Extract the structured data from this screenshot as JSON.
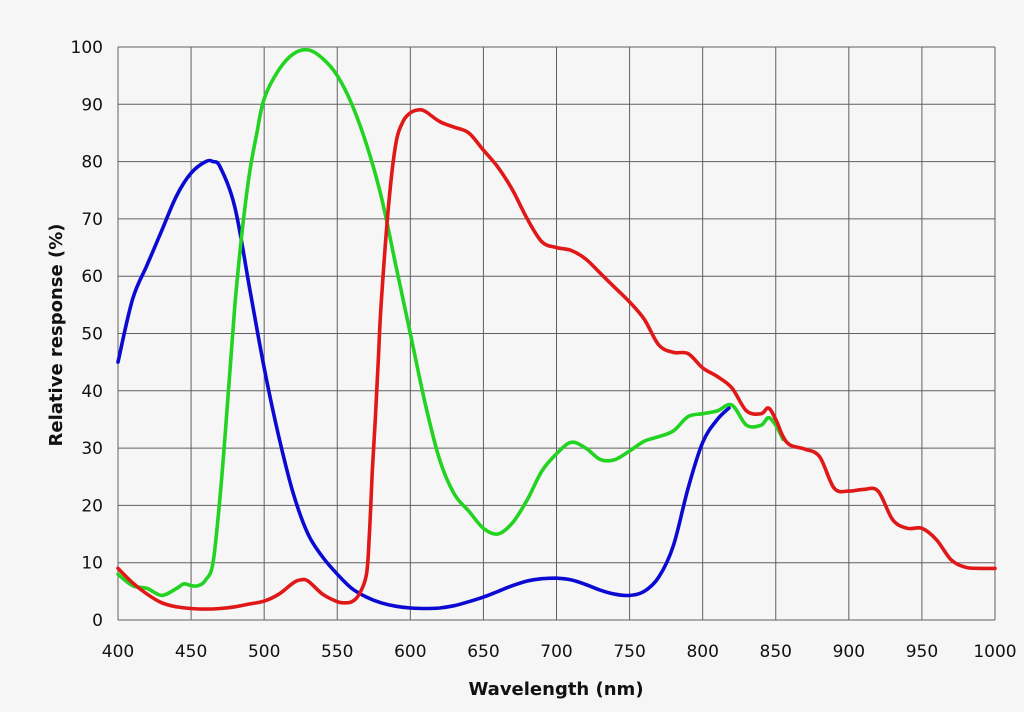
{
  "chart_data": {
    "type": "line",
    "title": "",
    "xlabel": "Wavelength (nm)",
    "ylabel": "Relative response (%)",
    "xlim": [
      400,
      1000
    ],
    "ylim": [
      0,
      100
    ],
    "xticks": [
      400,
      450,
      500,
      550,
      600,
      650,
      700,
      750,
      800,
      850,
      900,
      950,
      1000
    ],
    "yticks": [
      0,
      10,
      20,
      30,
      40,
      50,
      60,
      70,
      80,
      90,
      100
    ],
    "grid": true,
    "legend": "none",
    "series": [
      {
        "color": "#0a0ad2",
        "points": [
          [
            400,
            45
          ],
          [
            410,
            56
          ],
          [
            420,
            62
          ],
          [
            430,
            68
          ],
          [
            440,
            74
          ],
          [
            450,
            78
          ],
          [
            460,
            80
          ],
          [
            465,
            80
          ],
          [
            470,
            79
          ],
          [
            480,
            72
          ],
          [
            490,
            58
          ],
          [
            500,
            44
          ],
          [
            510,
            32
          ],
          [
            520,
            22
          ],
          [
            530,
            15
          ],
          [
            540,
            11
          ],
          [
            550,
            8
          ],
          [
            560,
            5.5
          ],
          [
            570,
            4
          ],
          [
            580,
            3
          ],
          [
            590,
            2.4
          ],
          [
            600,
            2.1
          ],
          [
            610,
            2
          ],
          [
            620,
            2.1
          ],
          [
            630,
            2.5
          ],
          [
            640,
            3.2
          ],
          [
            650,
            4
          ],
          [
            660,
            5
          ],
          [
            670,
            6
          ],
          [
            680,
            6.8
          ],
          [
            690,
            7.2
          ],
          [
            700,
            7.3
          ],
          [
            710,
            7
          ],
          [
            720,
            6.2
          ],
          [
            730,
            5.2
          ],
          [
            740,
            4.5
          ],
          [
            750,
            4.3
          ],
          [
            760,
            5
          ],
          [
            770,
            7.5
          ],
          [
            780,
            13
          ],
          [
            790,
            23
          ],
          [
            800,
            31
          ],
          [
            810,
            35
          ],
          [
            818,
            37
          ]
        ]
      },
      {
        "color": "#22d322",
        "points": [
          [
            400,
            8
          ],
          [
            410,
            6
          ],
          [
            420,
            5.5
          ],
          [
            430,
            4.3
          ],
          [
            440,
            5.5
          ],
          [
            445,
            6.3
          ],
          [
            450,
            6
          ],
          [
            455,
            6
          ],
          [
            460,
            7
          ],
          [
            465,
            10
          ],
          [
            470,
            22
          ],
          [
            475,
            38
          ],
          [
            480,
            55
          ],
          [
            485,
            68
          ],
          [
            490,
            78
          ],
          [
            495,
            85
          ],
          [
            500,
            91
          ],
          [
            510,
            96
          ],
          [
            520,
            98.8
          ],
          [
            530,
            99.5
          ],
          [
            540,
            98
          ],
          [
            550,
            95
          ],
          [
            560,
            90
          ],
          [
            570,
            83
          ],
          [
            580,
            74
          ],
          [
            590,
            62
          ],
          [
            600,
            50
          ],
          [
            610,
            38
          ],
          [
            620,
            28
          ],
          [
            630,
            22
          ],
          [
            640,
            19
          ],
          [
            650,
            16
          ],
          [
            660,
            15
          ],
          [
            670,
            17
          ],
          [
            680,
            21
          ],
          [
            690,
            26
          ],
          [
            700,
            29
          ],
          [
            710,
            31
          ],
          [
            720,
            30
          ],
          [
            730,
            28
          ],
          [
            740,
            28
          ],
          [
            750,
            29.5
          ],
          [
            760,
            31.2
          ],
          [
            770,
            32
          ],
          [
            780,
            33
          ],
          [
            790,
            35.5
          ],
          [
            800,
            36
          ],
          [
            810,
            36.5
          ],
          [
            820,
            37.5
          ],
          [
            830,
            34
          ],
          [
            840,
            34
          ],
          [
            845,
            35.3
          ],
          [
            850,
            34
          ],
          [
            855,
            31.5
          ]
        ]
      },
      {
        "color": "#e01818",
        "points": [
          [
            400,
            9
          ],
          [
            410,
            6.5
          ],
          [
            420,
            4.5
          ],
          [
            430,
            3
          ],
          [
            440,
            2.3
          ],
          [
            450,
            2
          ],
          [
            460,
            1.9
          ],
          [
            470,
            2
          ],
          [
            480,
            2.3
          ],
          [
            490,
            2.8
          ],
          [
            500,
            3.3
          ],
          [
            510,
            4.5
          ],
          [
            520,
            6.5
          ],
          [
            525,
            7
          ],
          [
            530,
            6.8
          ],
          [
            540,
            4.5
          ],
          [
            550,
            3.2
          ],
          [
            555,
            3
          ],
          [
            560,
            3.2
          ],
          [
            565,
            4.5
          ],
          [
            570,
            8
          ],
          [
            572,
            15
          ],
          [
            574,
            26
          ],
          [
            576,
            35
          ],
          [
            578,
            45
          ],
          [
            580,
            55
          ],
          [
            585,
            72
          ],
          [
            590,
            83
          ],
          [
            595,
            87
          ],
          [
            600,
            88.5
          ],
          [
            605,
            89
          ],
          [
            610,
            88.8
          ],
          [
            620,
            87
          ],
          [
            630,
            86
          ],
          [
            640,
            85
          ],
          [
            650,
            82
          ],
          [
            660,
            79
          ],
          [
            670,
            75
          ],
          [
            680,
            70
          ],
          [
            690,
            66
          ],
          [
            700,
            65
          ],
          [
            710,
            64.5
          ],
          [
            720,
            63
          ],
          [
            730,
            60.5
          ],
          [
            740,
            58
          ],
          [
            750,
            55.5
          ],
          [
            760,
            52.5
          ],
          [
            770,
            48
          ],
          [
            780,
            46.7
          ],
          [
            790,
            46.5
          ],
          [
            800,
            44
          ],
          [
            810,
            42.5
          ],
          [
            820,
            40.5
          ],
          [
            830,
            36.5
          ],
          [
            840,
            36
          ],
          [
            845,
            37
          ],
          [
            850,
            35
          ],
          [
            855,
            32
          ],
          [
            860,
            30.5
          ],
          [
            870,
            29.8
          ],
          [
            880,
            28.5
          ],
          [
            890,
            23
          ],
          [
            900,
            22.5
          ],
          [
            910,
            22.8
          ],
          [
            920,
            22.5
          ],
          [
            930,
            17.5
          ],
          [
            940,
            16
          ],
          [
            950,
            16
          ],
          [
            960,
            14
          ],
          [
            970,
            10.5
          ],
          [
            980,
            9.2
          ],
          [
            990,
            9
          ],
          [
            1000,
            9
          ]
        ]
      }
    ]
  }
}
